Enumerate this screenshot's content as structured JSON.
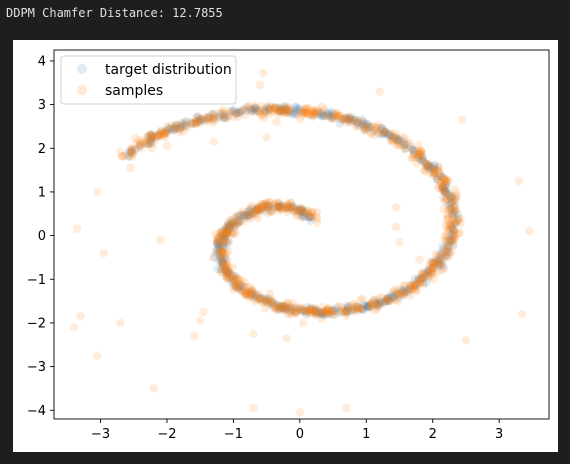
{
  "status_text": "DDPM Chamfer Distance: 12.7855",
  "chart_data": {
    "type": "scatter",
    "title": "",
    "xlabel": "",
    "ylabel": "",
    "xlim": [
      -3.7,
      3.75
    ],
    "ylim": [
      -4.2,
      4.25
    ],
    "xticks": [
      -3,
      -2,
      -1,
      0,
      1,
      2,
      3
    ],
    "yticks": [
      -4,
      -3,
      -2,
      -1,
      0,
      1,
      2,
      3,
      4
    ],
    "grid": false,
    "legend_position": "top-left",
    "series": [
      {
        "name": "target distribution",
        "color": "#1f77b4",
        "alpha": 0.12,
        "spiral": {
          "theta_start": 1.15,
          "theta_end": 8.8,
          "scale": 0.3628
        },
        "points": []
      },
      {
        "name": "samples",
        "color": "#ff7f0e",
        "alpha": 0.15,
        "spiral": {
          "theta_start": 1.15,
          "theta_end": 8.8,
          "scale": 0.3628
        },
        "outliers": [
          [
            -0.55,
            3.72
          ],
          [
            -0.6,
            3.45
          ],
          [
            -0.35,
            2.6
          ],
          [
            -0.5,
            2.25
          ],
          [
            -1.3,
            2.15
          ],
          [
            -2.0,
            2.05
          ],
          [
            -2.55,
            1.55
          ],
          [
            1.45,
            0.65
          ],
          [
            1.45,
            0.2
          ],
          [
            1.5,
            -0.15
          ],
          [
            1.8,
            -0.55
          ],
          [
            0.85,
            -1.75
          ],
          [
            -1.45,
            -1.75
          ],
          [
            -1.5,
            -1.95
          ],
          [
            -1.6,
            -2.3
          ],
          [
            -2.7,
            -2.0
          ],
          [
            -0.7,
            -2.25
          ],
          [
            -0.2,
            -2.35
          ],
          [
            0.05,
            -2.0
          ],
          [
            -3.3,
            -1.85
          ],
          [
            -3.4,
            -2.1
          ],
          [
            -3.05,
            -2.75
          ],
          [
            -2.2,
            -3.5
          ],
          [
            -0.7,
            -3.95
          ],
          [
            0.0,
            -4.05
          ],
          [
            0.7,
            -3.95
          ],
          [
            2.5,
            -2.4
          ],
          [
            3.35,
            -1.8
          ],
          [
            3.45,
            0.1
          ],
          [
            3.3,
            1.25
          ],
          [
            2.45,
            2.65
          ],
          [
            1.2,
            3.3
          ],
          [
            -3.05,
            1.0
          ],
          [
            -3.35,
            0.15
          ],
          [
            -2.95,
            -0.4
          ],
          [
            -2.1,
            -0.1
          ]
        ],
        "points": []
      }
    ]
  }
}
